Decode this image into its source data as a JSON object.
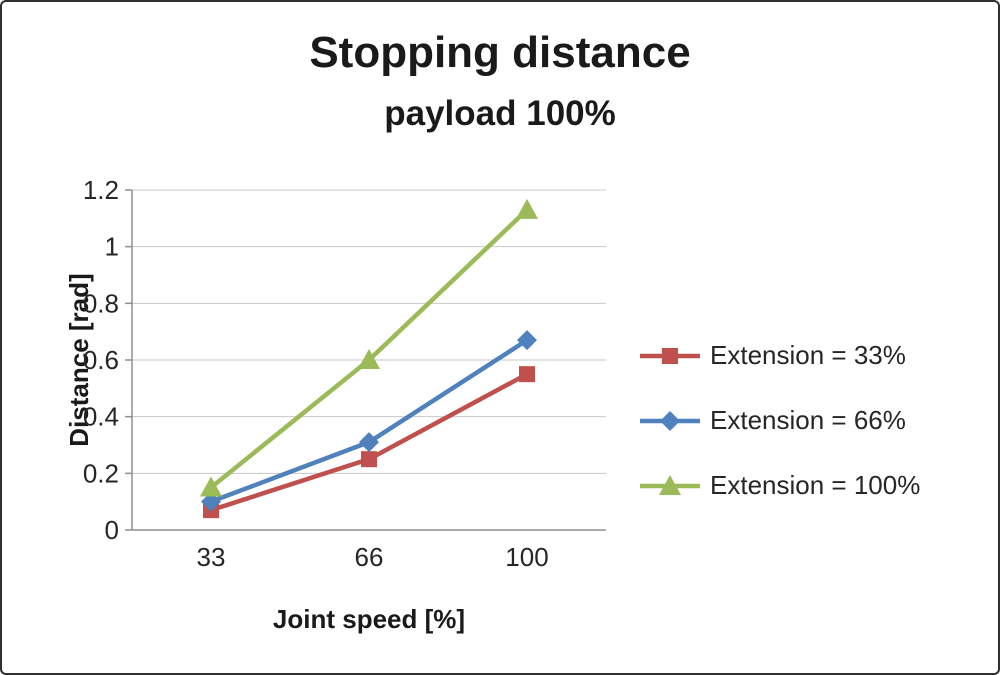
{
  "chart_data": {
    "type": "line",
    "title": "Stopping distance",
    "subtitle": "payload 100%",
    "categories": [
      "33",
      "66",
      "100"
    ],
    "xlabel": "Joint speed [%]",
    "ylabel": "Distance [rad]",
    "ylim": [
      0,
      1.2
    ],
    "ytick_step": 0.2,
    "grid": true,
    "legend_position": "right",
    "series": [
      {
        "name": "Extension = 33%",
        "color": "#C0504D",
        "marker": "square",
        "values": [
          0.07,
          0.25,
          0.55
        ]
      },
      {
        "name": "Extension = 66%",
        "color": "#4F81BD",
        "marker": "diamond",
        "values": [
          0.1,
          0.31,
          0.67
        ]
      },
      {
        "name": "Extension = 100%",
        "color": "#9BBB59",
        "marker": "triangle",
        "values": [
          0.15,
          0.6,
          1.13
        ]
      }
    ],
    "colors": {
      "gridline": "#c8c8c8",
      "axis": "#8f8f8f",
      "text": "#262626"
    }
  }
}
